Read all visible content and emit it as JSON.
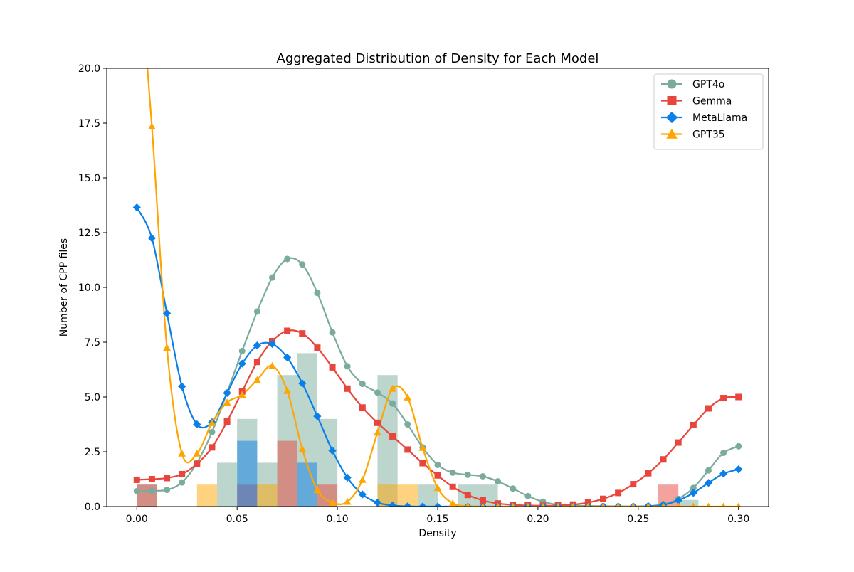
{
  "chart_data": {
    "type": "histogram+kde",
    "title": "Aggregated Distribution of Density for Each Model",
    "xlabel": "Density",
    "ylabel": "Number of CPP files",
    "xlim": [
      -0.015,
      0.315
    ],
    "ylim": [
      0,
      20
    ],
    "xticks": [
      "0.00",
      "0.05",
      "0.10",
      "0.15",
      "0.20",
      "0.25",
      "0.30"
    ],
    "yticks": [
      "0.0",
      "2.5",
      "5.0",
      "7.5",
      "10.0",
      "12.5",
      "15.0",
      "17.5",
      "20.0"
    ],
    "grid": false,
    "legend_position": "top-right",
    "bin_width": 0.01,
    "series": [
      {
        "name": "GPT4o",
        "color": "#7aab9c",
        "marker": "circle",
        "histogram": [
          {
            "x": 0.0,
            "count": 1
          },
          {
            "x": 0.04,
            "count": 2
          },
          {
            "x": 0.05,
            "count": 4
          },
          {
            "x": 0.06,
            "count": 2
          },
          {
            "x": 0.07,
            "count": 6
          },
          {
            "x": 0.08,
            "count": 7
          },
          {
            "x": 0.09,
            "count": 4
          },
          {
            "x": 0.12,
            "count": 6
          },
          {
            "x": 0.14,
            "count": 1
          },
          {
            "x": 0.16,
            "count": 1
          },
          {
            "x": 0.17,
            "count": 1
          },
          {
            "x": 0.27,
            "count": 0.3
          }
        ],
        "kde": [
          [
            0.0,
            0.7
          ],
          [
            0.0075,
            0.72
          ],
          [
            0.015,
            0.76
          ],
          [
            0.0225,
            1.1
          ],
          [
            0.03,
            2.0
          ],
          [
            0.0375,
            3.4
          ],
          [
            0.045,
            5.2
          ],
          [
            0.0525,
            7.1
          ],
          [
            0.06,
            8.9
          ],
          [
            0.0675,
            10.45
          ],
          [
            0.075,
            11.3
          ],
          [
            0.0825,
            11.05
          ],
          [
            0.09,
            9.75
          ],
          [
            0.0975,
            7.95
          ],
          [
            0.105,
            6.4
          ],
          [
            0.1125,
            5.6
          ],
          [
            0.12,
            5.2
          ],
          [
            0.1275,
            4.7
          ],
          [
            0.135,
            3.75
          ],
          [
            0.1425,
            2.7
          ],
          [
            0.15,
            1.9
          ],
          [
            0.1575,
            1.55
          ],
          [
            0.165,
            1.45
          ],
          [
            0.1725,
            1.38
          ],
          [
            0.18,
            1.15
          ],
          [
            0.1875,
            0.82
          ],
          [
            0.195,
            0.48
          ],
          [
            0.2025,
            0.22
          ],
          [
            0.21,
            0.08
          ],
          [
            0.2175,
            0.05
          ],
          [
            0.225,
            0.03
          ],
          [
            0.2325,
            0.02
          ],
          [
            0.24,
            0.01
          ],
          [
            0.2475,
            0.01
          ],
          [
            0.255,
            0.02
          ],
          [
            0.2625,
            0.1
          ],
          [
            0.27,
            0.35
          ],
          [
            0.2775,
            0.85
          ],
          [
            0.285,
            1.65
          ],
          [
            0.2925,
            2.45
          ],
          [
            0.3,
            2.75
          ]
        ]
      },
      {
        "name": "Gemma",
        "color": "#e8453c",
        "marker": "square",
        "histogram": [
          {
            "x": 0.0,
            "count": 1
          },
          {
            "x": 0.05,
            "count": 1
          },
          {
            "x": 0.07,
            "count": 3
          },
          {
            "x": 0.09,
            "count": 1
          },
          {
            "x": 0.26,
            "count": 1
          }
        ],
        "kde": [
          [
            0.0,
            1.22
          ],
          [
            0.0075,
            1.25
          ],
          [
            0.015,
            1.3
          ],
          [
            0.0225,
            1.48
          ],
          [
            0.03,
            1.95
          ],
          [
            0.0375,
            2.7
          ],
          [
            0.045,
            3.88
          ],
          [
            0.0525,
            5.25
          ],
          [
            0.06,
            6.6
          ],
          [
            0.0675,
            7.55
          ],
          [
            0.075,
            8.02
          ],
          [
            0.0825,
            7.9
          ],
          [
            0.09,
            7.25
          ],
          [
            0.0975,
            6.35
          ],
          [
            0.105,
            5.38
          ],
          [
            0.1125,
            4.52
          ],
          [
            0.12,
            3.82
          ],
          [
            0.1275,
            3.2
          ],
          [
            0.135,
            2.6
          ],
          [
            0.1425,
            1.98
          ],
          [
            0.15,
            1.42
          ],
          [
            0.1575,
            0.9
          ],
          [
            0.165,
            0.53
          ],
          [
            0.1725,
            0.28
          ],
          [
            0.18,
            0.14
          ],
          [
            0.1875,
            0.08
          ],
          [
            0.195,
            0.05
          ],
          [
            0.2025,
            0.04
          ],
          [
            0.21,
            0.05
          ],
          [
            0.2175,
            0.09
          ],
          [
            0.225,
            0.18
          ],
          [
            0.2325,
            0.35
          ],
          [
            0.24,
            0.62
          ],
          [
            0.2475,
            1.02
          ],
          [
            0.255,
            1.52
          ],
          [
            0.2625,
            2.15
          ],
          [
            0.27,
            2.92
          ],
          [
            0.2775,
            3.72
          ],
          [
            0.285,
            4.48
          ],
          [
            0.2925,
            4.95
          ],
          [
            0.3,
            5.0
          ]
        ]
      },
      {
        "name": "MetaLlama",
        "color": "#0a7fe8",
        "marker": "diamond",
        "histogram": [
          {
            "x": 0.05,
            "count": 3
          },
          {
            "x": 0.08,
            "count": 2
          }
        ],
        "kde": [
          [
            0.0,
            13.65
          ],
          [
            0.0075,
            12.25
          ],
          [
            0.015,
            8.82
          ],
          [
            0.0225,
            5.48
          ],
          [
            0.03,
            3.75
          ],
          [
            0.0375,
            3.85
          ],
          [
            0.045,
            5.18
          ],
          [
            0.0525,
            6.52
          ],
          [
            0.06,
            7.35
          ],
          [
            0.0675,
            7.42
          ],
          [
            0.075,
            6.8
          ],
          [
            0.0825,
            5.62
          ],
          [
            0.09,
            4.12
          ],
          [
            0.0975,
            2.55
          ],
          [
            0.105,
            1.32
          ],
          [
            0.1125,
            0.55
          ],
          [
            0.12,
            0.18
          ],
          [
            0.1275,
            0.05
          ],
          [
            0.135,
            0.01
          ],
          [
            0.1425,
            0.0
          ],
          [
            0.15,
            0.0
          ],
          [
            0.1575,
            0.0
          ],
          [
            0.165,
            0.0
          ],
          [
            0.1725,
            0.0
          ],
          [
            0.18,
            0.0
          ],
          [
            0.1875,
            0.0
          ],
          [
            0.195,
            0.0
          ],
          [
            0.2025,
            0.0
          ],
          [
            0.21,
            0.0
          ],
          [
            0.2175,
            0.0
          ],
          [
            0.225,
            0.0
          ],
          [
            0.2325,
            0.0
          ],
          [
            0.24,
            0.0
          ],
          [
            0.2475,
            0.0
          ],
          [
            0.255,
            0.02
          ],
          [
            0.2625,
            0.08
          ],
          [
            0.27,
            0.28
          ],
          [
            0.2775,
            0.62
          ],
          [
            0.285,
            1.08
          ],
          [
            0.2925,
            1.5
          ],
          [
            0.3,
            1.7
          ]
        ]
      },
      {
        "name": "GPT35",
        "color": "#ffa500",
        "marker": "triangle",
        "histogram": [
          {
            "x": 0.03,
            "count": 1
          },
          {
            "x": 0.06,
            "count": 1
          },
          {
            "x": 0.12,
            "count": 1
          },
          {
            "x": 0.13,
            "count": 1
          }
        ],
        "kde": [
          [
            0.0,
            26.0
          ],
          [
            0.0075,
            17.35
          ],
          [
            0.015,
            7.25
          ],
          [
            0.0225,
            2.42
          ],
          [
            0.03,
            2.42
          ],
          [
            0.0375,
            3.82
          ],
          [
            0.045,
            4.75
          ],
          [
            0.0525,
            5.1
          ],
          [
            0.06,
            5.78
          ],
          [
            0.0675,
            6.42
          ],
          [
            0.075,
            5.28
          ],
          [
            0.0825,
            2.62
          ],
          [
            0.09,
            0.75
          ],
          [
            0.0975,
            0.18
          ],
          [
            0.105,
            0.22
          ],
          [
            0.1125,
            1.22
          ],
          [
            0.12,
            3.38
          ],
          [
            0.1275,
            5.38
          ],
          [
            0.135,
            4.98
          ],
          [
            0.1425,
            2.68
          ],
          [
            0.15,
            0.85
          ],
          [
            0.1575,
            0.15
          ],
          [
            0.165,
            0.02
          ],
          [
            0.1725,
            0.0
          ],
          [
            0.18,
            0.0
          ],
          [
            0.1875,
            0.0
          ],
          [
            0.195,
            0.0
          ],
          [
            0.2025,
            0.0
          ],
          [
            0.21,
            0.0
          ],
          [
            0.2175,
            0.0
          ],
          [
            0.225,
            0.0
          ],
          [
            0.2325,
            0.0
          ],
          [
            0.24,
            0.0
          ],
          [
            0.2475,
            0.0
          ],
          [
            0.255,
            0.0
          ],
          [
            0.2625,
            0.0
          ],
          [
            0.27,
            0.0
          ],
          [
            0.2775,
            0.0
          ],
          [
            0.285,
            0.0
          ],
          [
            0.2925,
            0.0
          ],
          [
            0.3,
            0.0
          ]
        ]
      }
    ]
  }
}
